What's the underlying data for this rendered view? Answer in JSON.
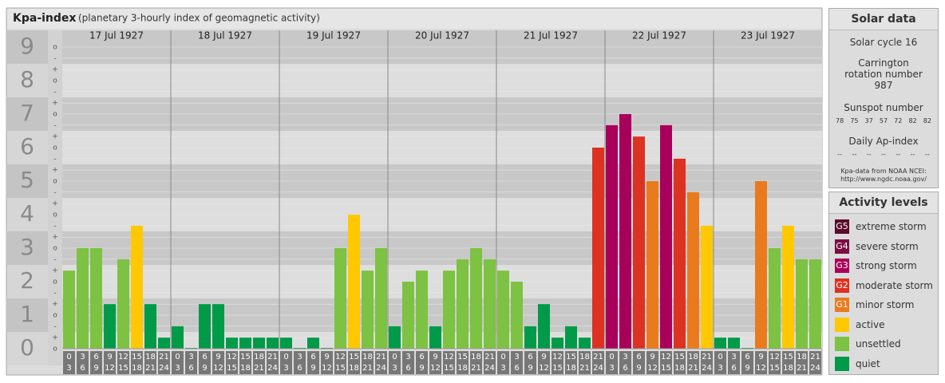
{
  "chart_data": {
    "type": "bar",
    "title": "Kpa-index",
    "subtitle": "(planetary 3-hourly index of geomagnetic activity)",
    "ylim": [
      0,
      9.5
    ],
    "yticks": [
      0,
      1,
      2,
      3,
      4,
      5,
      6,
      7,
      8,
      9
    ],
    "minor_ticks": [
      {
        "value": 0,
        "label": "o"
      },
      {
        "value": 0.33,
        "label": "+"
      },
      {
        "value": 0.67,
        "label": "-"
      },
      {
        "value": 1,
        "label": "o"
      },
      {
        "value": 1.33,
        "label": "+"
      },
      {
        "value": 1.67,
        "label": "-"
      },
      {
        "value": 2,
        "label": "o"
      },
      {
        "value": 2.33,
        "label": "+"
      },
      {
        "value": 2.67,
        "label": "-"
      },
      {
        "value": 3,
        "label": "o"
      },
      {
        "value": 3.33,
        "label": "+"
      },
      {
        "value": 3.67,
        "label": "-"
      },
      {
        "value": 4,
        "label": "o"
      },
      {
        "value": 4.33,
        "label": "+"
      },
      {
        "value": 4.67,
        "label": "-"
      },
      {
        "value": 5,
        "label": "o"
      },
      {
        "value": 5.33,
        "label": "+"
      },
      {
        "value": 5.67,
        "label": "-"
      },
      {
        "value": 6,
        "label": "o"
      },
      {
        "value": 6.33,
        "label": "+"
      },
      {
        "value": 6.67,
        "label": "-"
      },
      {
        "value": 7,
        "label": "o"
      },
      {
        "value": 7.33,
        "label": "+"
      },
      {
        "value": 7.67,
        "label": "-"
      },
      {
        "value": 8,
        "label": "o"
      },
      {
        "value": 8.33,
        "label": "+"
      },
      {
        "value": 8.67,
        "label": "-"
      },
      {
        "value": 9,
        "label": "o"
      }
    ],
    "time_bins": [
      [
        0,
        3
      ],
      [
        3,
        6
      ],
      [
        6,
        9
      ],
      [
        9,
        12
      ],
      [
        12,
        15
      ],
      [
        15,
        18
      ],
      [
        18,
        21
      ],
      [
        21,
        24
      ]
    ],
    "days": [
      {
        "label": "17 Jul 1927",
        "values": [
          2.33,
          3,
          3,
          1.33,
          2.67,
          3.67,
          1.33,
          0.33
        ],
        "colors": [
          "#7dc242",
          "#7dc242",
          "#7dc242",
          "#009a48",
          "#7dc242",
          "#ffc800",
          "#009a48",
          "#009a48"
        ]
      },
      {
        "label": "18 Jul 1927",
        "values": [
          0.67,
          0,
          1.33,
          1.33,
          0.33,
          0.33,
          0.33,
          0.33
        ],
        "colors": [
          "#009a48",
          "#009a48",
          "#009a48",
          "#009a48",
          "#009a48",
          "#009a48",
          "#009a48",
          "#009a48"
        ]
      },
      {
        "label": "19 Jul 1927",
        "values": [
          0.33,
          0,
          0.33,
          0,
          3,
          4,
          2.33,
          3
        ],
        "colors": [
          "#009a48",
          "#009a48",
          "#009a48",
          "#009a48",
          "#7dc242",
          "#ffc800",
          "#7dc242",
          "#7dc242"
        ]
      },
      {
        "label": "20 Jul 1927",
        "values": [
          0.67,
          2,
          2.33,
          0.67,
          2.33,
          2.67,
          3,
          2.67
        ],
        "colors": [
          "#009a48",
          "#7dc242",
          "#7dc242",
          "#009a48",
          "#7dc242",
          "#7dc242",
          "#7dc242",
          "#7dc242"
        ]
      },
      {
        "label": "21 Jul 1927",
        "values": [
          2.33,
          2,
          0.67,
          1.33,
          0.33,
          0.67,
          0.33,
          6
        ],
        "colors": [
          "#7dc242",
          "#7dc242",
          "#009a48",
          "#009a48",
          "#009a48",
          "#009a48",
          "#009a48",
          "#dc3222"
        ]
      },
      {
        "label": "22 Jul 1927",
        "values": [
          6.67,
          7,
          6.33,
          5,
          6.67,
          5.67,
          4.67,
          3.67
        ],
        "colors": [
          "#a8005a",
          "#a8005a",
          "#dc3222",
          "#ea7a1e",
          "#a8005a",
          "#dc3222",
          "#ea7a1e",
          "#ffc800"
        ]
      },
      {
        "label": "23 Jul 1927",
        "values": [
          0.33,
          0.33,
          0,
          5,
          3,
          3.67,
          2.67,
          2.67
        ],
        "colors": [
          "#009a48",
          "#009a48",
          "#009a48",
          "#ea7a1e",
          "#7dc242",
          "#ffc800",
          "#7dc242",
          "#7dc242"
        ]
      }
    ],
    "legend_title": "Activity levels",
    "legend": [
      {
        "code": "G5",
        "label": "extreme storm",
        "color": "#5a0a2a"
      },
      {
        "code": "G4",
        "label": "severe storm",
        "color": "#7c0c40"
      },
      {
        "code": "G3",
        "label": "strong storm",
        "color": "#a8005a"
      },
      {
        "code": "G2",
        "label": "moderate storm",
        "color": "#dc3222"
      },
      {
        "code": "G1",
        "label": "minor storm",
        "color": "#ea7a1e"
      },
      {
        "label": "active",
        "color": "#ffc800"
      },
      {
        "label": "unsettled",
        "color": "#7dc242"
      },
      {
        "label": "quiet",
        "color": "#009a48"
      }
    ]
  },
  "solar_data": {
    "title": "Solar data",
    "solar_cycle": "Solar cycle 16",
    "carrington": "Carrington rotation number 987",
    "sunspot_title": "Sunspot number",
    "sunspot_numbers": [
      78,
      75,
      37,
      57,
      72,
      82,
      82
    ],
    "ap_title": "Daily Ap-index",
    "ap_values": [
      "--",
      "--",
      "--",
      "--",
      "--",
      "--",
      "--"
    ],
    "source": "Kpa-data from NOAA NCEI: http://www.ngdc.noaa.gov/"
  }
}
